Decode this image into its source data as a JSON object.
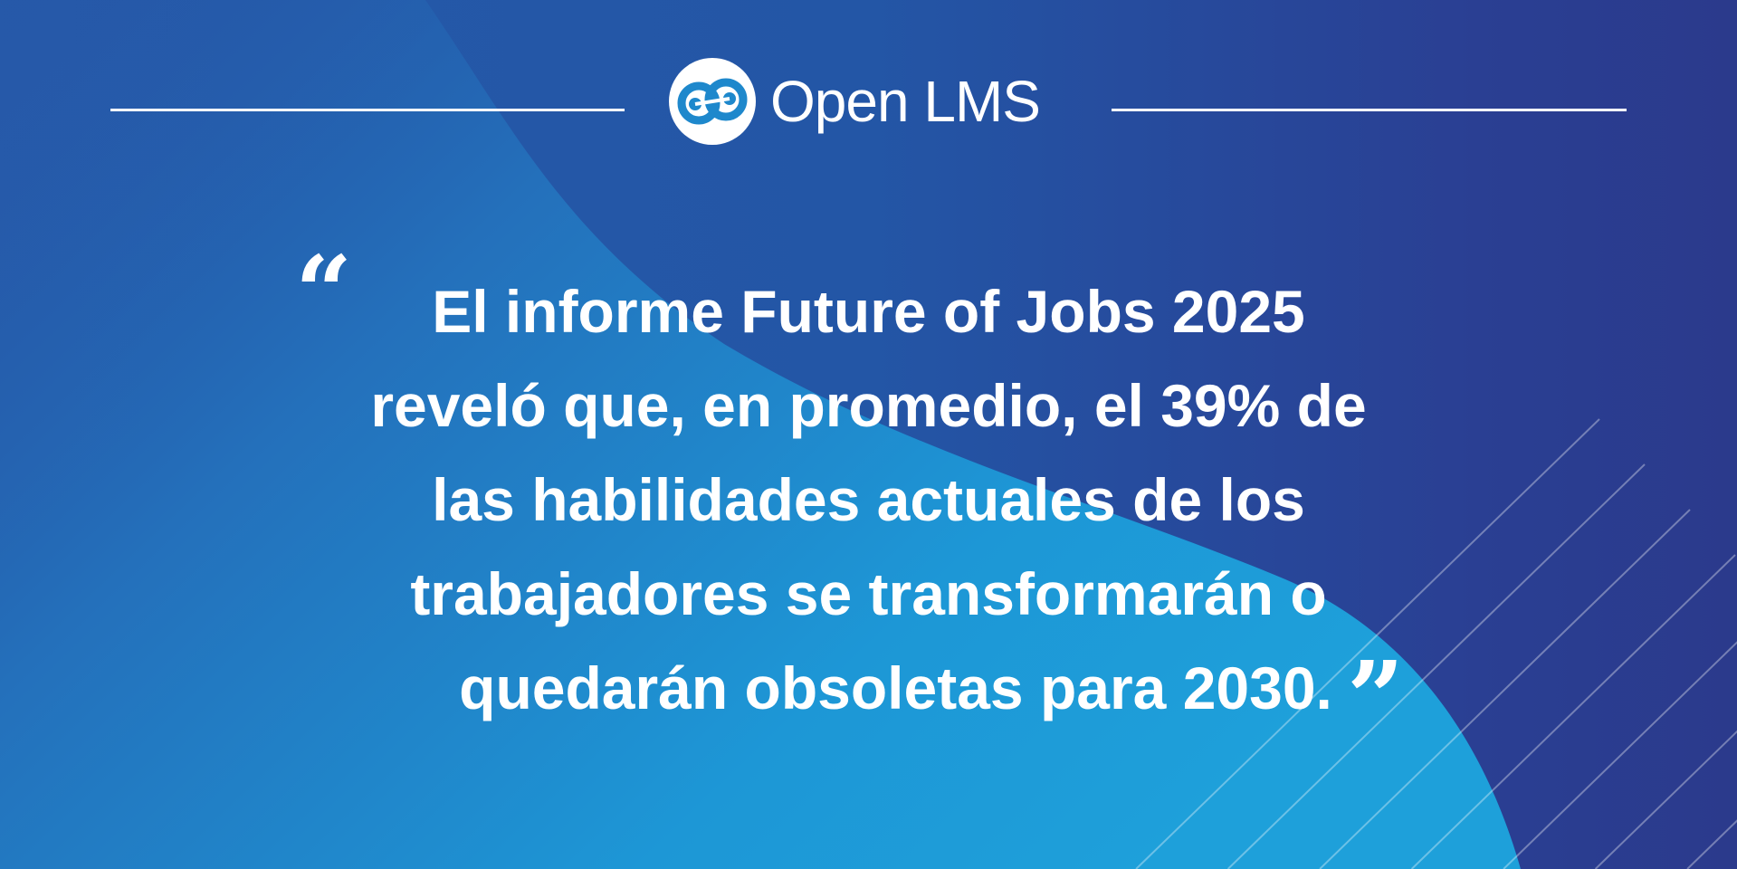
{
  "brand": {
    "name": "Open LMS",
    "colors": {
      "dark_blue": "#2b3a8c",
      "mid_blue": "#2659a9",
      "light_blue": "#1d9ad8",
      "text": "#ffffff"
    }
  },
  "quote": {
    "open_mark": "“",
    "close_mark": "”",
    "lines": [
      "El informe Future of Jobs 2025",
      "reveló que, en promedio, el 39% de",
      "las habilidades actuales de los",
      "trabajadores se transformarán o",
      "quedarán obsoletas para 2030."
    ]
  }
}
